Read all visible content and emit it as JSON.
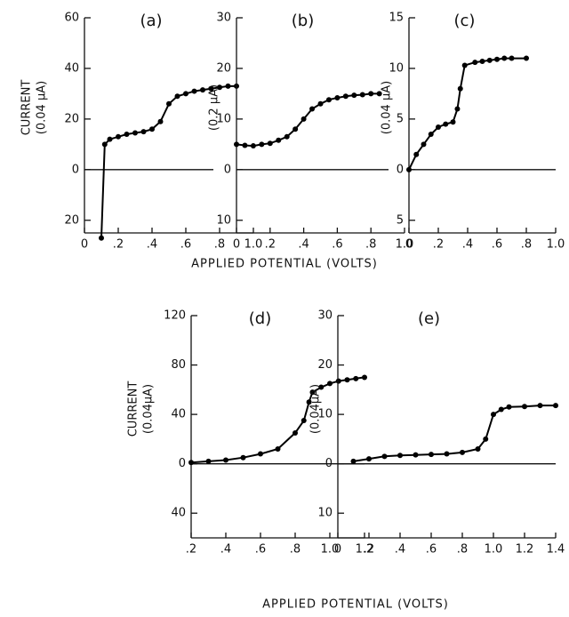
{
  "chart_data": [
    {
      "type": "line",
      "title": "(a)",
      "ylabel_name": "CURRENT",
      "ylabel": "(0.04 μA)",
      "color": "#000000",
      "x": [
        0.1,
        0.12,
        0.15,
        0.2,
        0.25,
        0.3,
        0.35,
        0.4,
        0.45,
        0.5,
        0.55,
        0.6,
        0.65,
        0.7,
        0.75,
        0.8,
        0.85,
        0.9
      ],
      "values": [
        -27,
        10,
        12,
        13,
        14,
        14.5,
        15,
        16,
        19,
        26,
        29,
        30,
        31,
        31.5,
        32,
        32.5,
        33,
        33
      ],
      "xlim": [
        0,
        1.0
      ],
      "ylim": [
        -25,
        60
      ],
      "xticks": [
        0,
        {
          "value": 0.2,
          "label": ".2"
        },
        {
          "value": 0.4,
          "label": ".4"
        },
        {
          "value": 0.6,
          "label": ".6"
        },
        {
          "value": 0.8,
          "label": ".8"
        },
        {
          "value": 1.0,
          "label": "1.0"
        }
      ],
      "yticks": [
        {
          "value": -20,
          "label": "20"
        },
        0,
        20,
        40,
        60
      ]
    },
    {
      "type": "line",
      "title": "(b)",
      "ylabel": "(0.2 μA)",
      "color": "#000000",
      "x": [
        0,
        0.05,
        0.1,
        0.15,
        0.2,
        0.25,
        0.3,
        0.35,
        0.4,
        0.45,
        0.5,
        0.55,
        0.6,
        0.65,
        0.7,
        0.75,
        0.8,
        0.85
      ],
      "values": [
        5,
        4.8,
        4.7,
        5,
        5.2,
        5.8,
        6.5,
        8,
        10,
        12,
        13,
        13.8,
        14.2,
        14.5,
        14.7,
        14.8,
        15,
        15
      ],
      "xlim": [
        0,
        1.0
      ],
      "ylim": [
        -12.5,
        30
      ],
      "xticks": [
        0,
        {
          "value": 0.2,
          "label": ".2"
        },
        {
          "value": 0.4,
          "label": ".4"
        },
        {
          "value": 0.6,
          "label": ".6"
        },
        {
          "value": 0.8,
          "label": ".8"
        },
        {
          "value": 1.0,
          "label": "1.0"
        }
      ],
      "yticks": [
        {
          "value": -10,
          "label": "10"
        },
        0,
        10,
        20,
        30
      ]
    },
    {
      "type": "line",
      "title": "(c)",
      "ylabel": "(0.04 μA)",
      "color": "#000000",
      "x": [
        0,
        0.05,
        0.1,
        0.15,
        0.2,
        0.25,
        0.3,
        0.33,
        0.35,
        0.38,
        0.45,
        0.5,
        0.55,
        0.6,
        0.65,
        0.7,
        0.8
      ],
      "values": [
        0,
        1.5,
        2.5,
        3.5,
        4.2,
        4.5,
        4.7,
        6,
        8,
        10.3,
        10.6,
        10.7,
        10.8,
        10.9,
        11,
        11,
        11
      ],
      "xlim": [
        0,
        1.0
      ],
      "ylim": [
        -6.25,
        15
      ],
      "xticks": [
        0,
        {
          "value": 0.2,
          "label": ".2"
        },
        {
          "value": 0.4,
          "label": ".4"
        },
        {
          "value": 0.6,
          "label": ".6"
        },
        {
          "value": 0.8,
          "label": ".8"
        },
        {
          "value": 1.0,
          "label": "1.0"
        }
      ],
      "yticks": [
        {
          "value": -5,
          "label": "5"
        },
        0,
        5,
        10,
        15
      ]
    },
    {
      "type": "line",
      "title": "(d)",
      "ylabel_name": "CURRENT",
      "ylabel": "(0.04μA)",
      "color": "#000000",
      "x": [
        0.2,
        0.3,
        0.4,
        0.5,
        0.6,
        0.7,
        0.8,
        0.85,
        0.88,
        0.9,
        0.95,
        1.0,
        1.05,
        1.1,
        1.15,
        1.2
      ],
      "values": [
        1,
        2,
        3,
        5,
        8,
        12,
        25,
        35,
        50,
        58,
        62,
        65,
        67,
        68,
        69,
        70
      ],
      "xlim": [
        0.2,
        1.2
      ],
      "ylim": [
        -60,
        120
      ],
      "xticks": [
        {
          "value": 0.2,
          "label": ".2"
        },
        {
          "value": 0.4,
          "label": ".4"
        },
        {
          "value": 0.6,
          "label": ".6"
        },
        {
          "value": 0.8,
          "label": ".8"
        },
        {
          "value": 1.0,
          "label": "1.0"
        },
        {
          "value": 1.2,
          "label": "1.2"
        }
      ],
      "yticks": [
        {
          "value": -40,
          "label": "40"
        },
        0,
        40,
        80,
        120
      ]
    },
    {
      "type": "line",
      "title": "(e)",
      "ylabel": "(0.04μA)",
      "color": "#000000",
      "x": [
        0.1,
        0.2,
        0.3,
        0.4,
        0.5,
        0.6,
        0.7,
        0.8,
        0.9,
        0.95,
        1.0,
        1.05,
        1.1,
        1.2,
        1.3,
        1.4
      ],
      "values": [
        0.5,
        1,
        1.5,
        1.7,
        1.8,
        1.9,
        2,
        2.3,
        3,
        5,
        10,
        11,
        11.5,
        11.6,
        11.8,
        11.8
      ],
      "xlim": [
        0,
        1.4
      ],
      "ylim": [
        -15,
        30
      ],
      "xticks": [
        0,
        {
          "value": 0.2,
          "label": ".2"
        },
        {
          "value": 0.4,
          "label": ".4"
        },
        {
          "value": 0.6,
          "label": ".6"
        },
        {
          "value": 0.8,
          "label": ".8"
        },
        {
          "value": 1.0,
          "label": "1.0"
        },
        {
          "value": 1.2,
          "label": "1.2"
        },
        {
          "value": 1.4,
          "label": "1.4"
        }
      ],
      "yticks": [
        {
          "value": -10,
          "label": "10"
        },
        0,
        10,
        20,
        30
      ]
    }
  ],
  "xlabel_top": "APPLIED POTENTIAL (VOLTS)",
  "xlabel_bottom": "APPLIED POTENTIAL (VOLTS)"
}
